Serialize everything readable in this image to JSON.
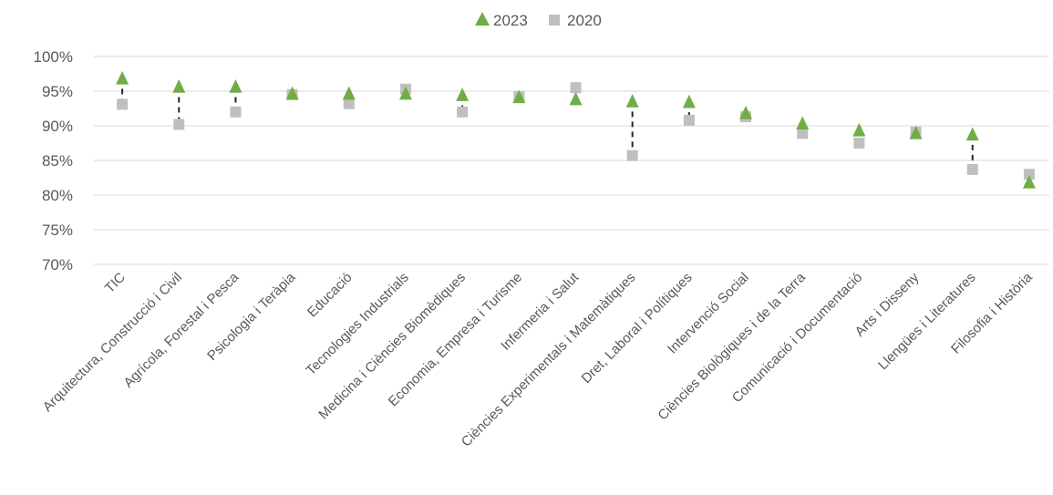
{
  "chart_data": {
    "type": "scatter",
    "title": "",
    "xlabel": "",
    "ylabel": "",
    "ylim": [
      0.7,
      1.0
    ],
    "yticks": [
      0.7,
      0.75,
      0.8,
      0.85,
      0.9,
      0.95,
      1.0
    ],
    "ytick_labels": [
      "70%",
      "75%",
      "80%",
      "85%",
      "90%",
      "95%",
      "100%"
    ],
    "grid": true,
    "legend_position": "top-center",
    "categories": [
      "TIC",
      "Arquitectura, Construcció i Civil",
      "Agrícola, Forestal i Pesca",
      "Psicologia i Teràpia",
      "Educació",
      "Tecnologies Industrials",
      "Medicina i Ciències Biomèdiques",
      "Economia, Empresa i Turisme",
      "Infermeria i Salut",
      "Ciències Experimentals i Matemàtiques",
      "Dret, Laboral i Polítiques",
      "Intervenció Social",
      "Ciències Biològiques i de la Terra",
      "Comunicació i Documentació",
      "Arts i Disseny",
      "Llengües i Literatures",
      "Filosofia i Història"
    ],
    "series": [
      {
        "name": "2023",
        "marker": "triangle",
        "color": "#70AD47",
        "values": [
          0.968,
          0.956,
          0.956,
          0.946,
          0.946,
          0.946,
          0.944,
          0.941,
          0.938,
          0.935,
          0.934,
          0.918,
          0.903,
          0.893,
          0.889,
          0.887,
          0.818
        ]
      },
      {
        "name": "2020",
        "marker": "square",
        "color": "#BFBFBF",
        "values": [
          0.931,
          0.902,
          0.92,
          0.945,
          0.932,
          0.953,
          0.92,
          0.942,
          0.955,
          0.857,
          0.908,
          0.913,
          0.889,
          0.875,
          0.891,
          0.837,
          0.83
        ]
      }
    ],
    "connector": {
      "style": "dashed",
      "color": "#262626"
    },
    "gridline_color": "#D9D9D9"
  }
}
